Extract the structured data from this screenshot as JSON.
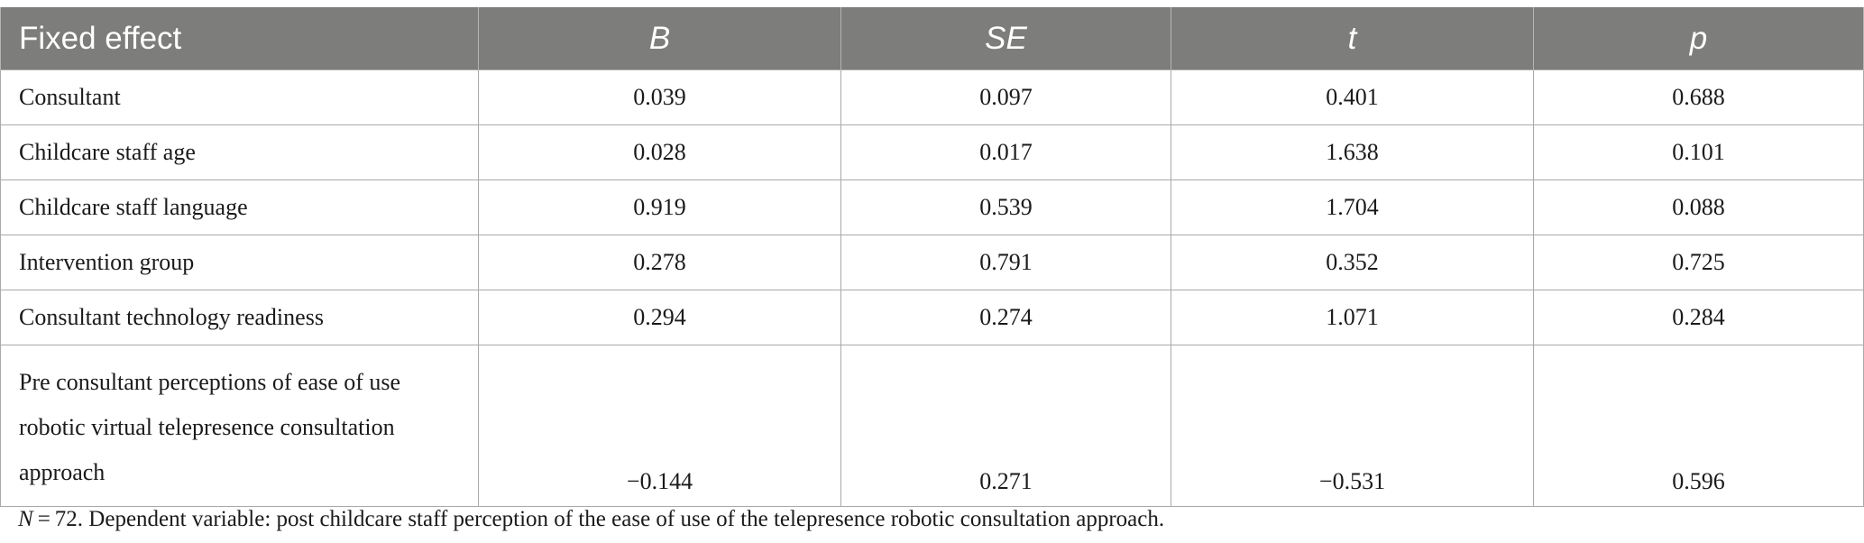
{
  "table": {
    "headers": [
      "Fixed effect",
      "B",
      "SE",
      "t",
      "p"
    ],
    "rows": [
      [
        "Consultant",
        "0.039",
        "0.097",
        "0.401",
        "0.688"
      ],
      [
        "Childcare staff age",
        "0.028",
        "0.017",
        "1.638",
        "0.101"
      ],
      [
        "Childcare staff language",
        "0.919",
        "0.539",
        "1.704",
        "0.088"
      ],
      [
        "Intervention group",
        "0.278",
        "0.791",
        "0.352",
        "0.725"
      ],
      [
        "Consultant technology readiness",
        "0.294",
        "0.274",
        "1.071",
        "0.284"
      ],
      [
        "Pre consultant perceptions of ease of use robotic virtual telepresence consultation approach",
        "−0.144",
        "0.271",
        "−0.531",
        "0.596"
      ]
    ],
    "header_bg": "#7d7d7b",
    "header_text_color": "#ffffff"
  },
  "note": {
    "n_label": "N",
    "n_value": " = 72.",
    "text": " Dependent variable: post childcare staff perception of the ease of use of the telepresence robotic consultation approach."
  }
}
